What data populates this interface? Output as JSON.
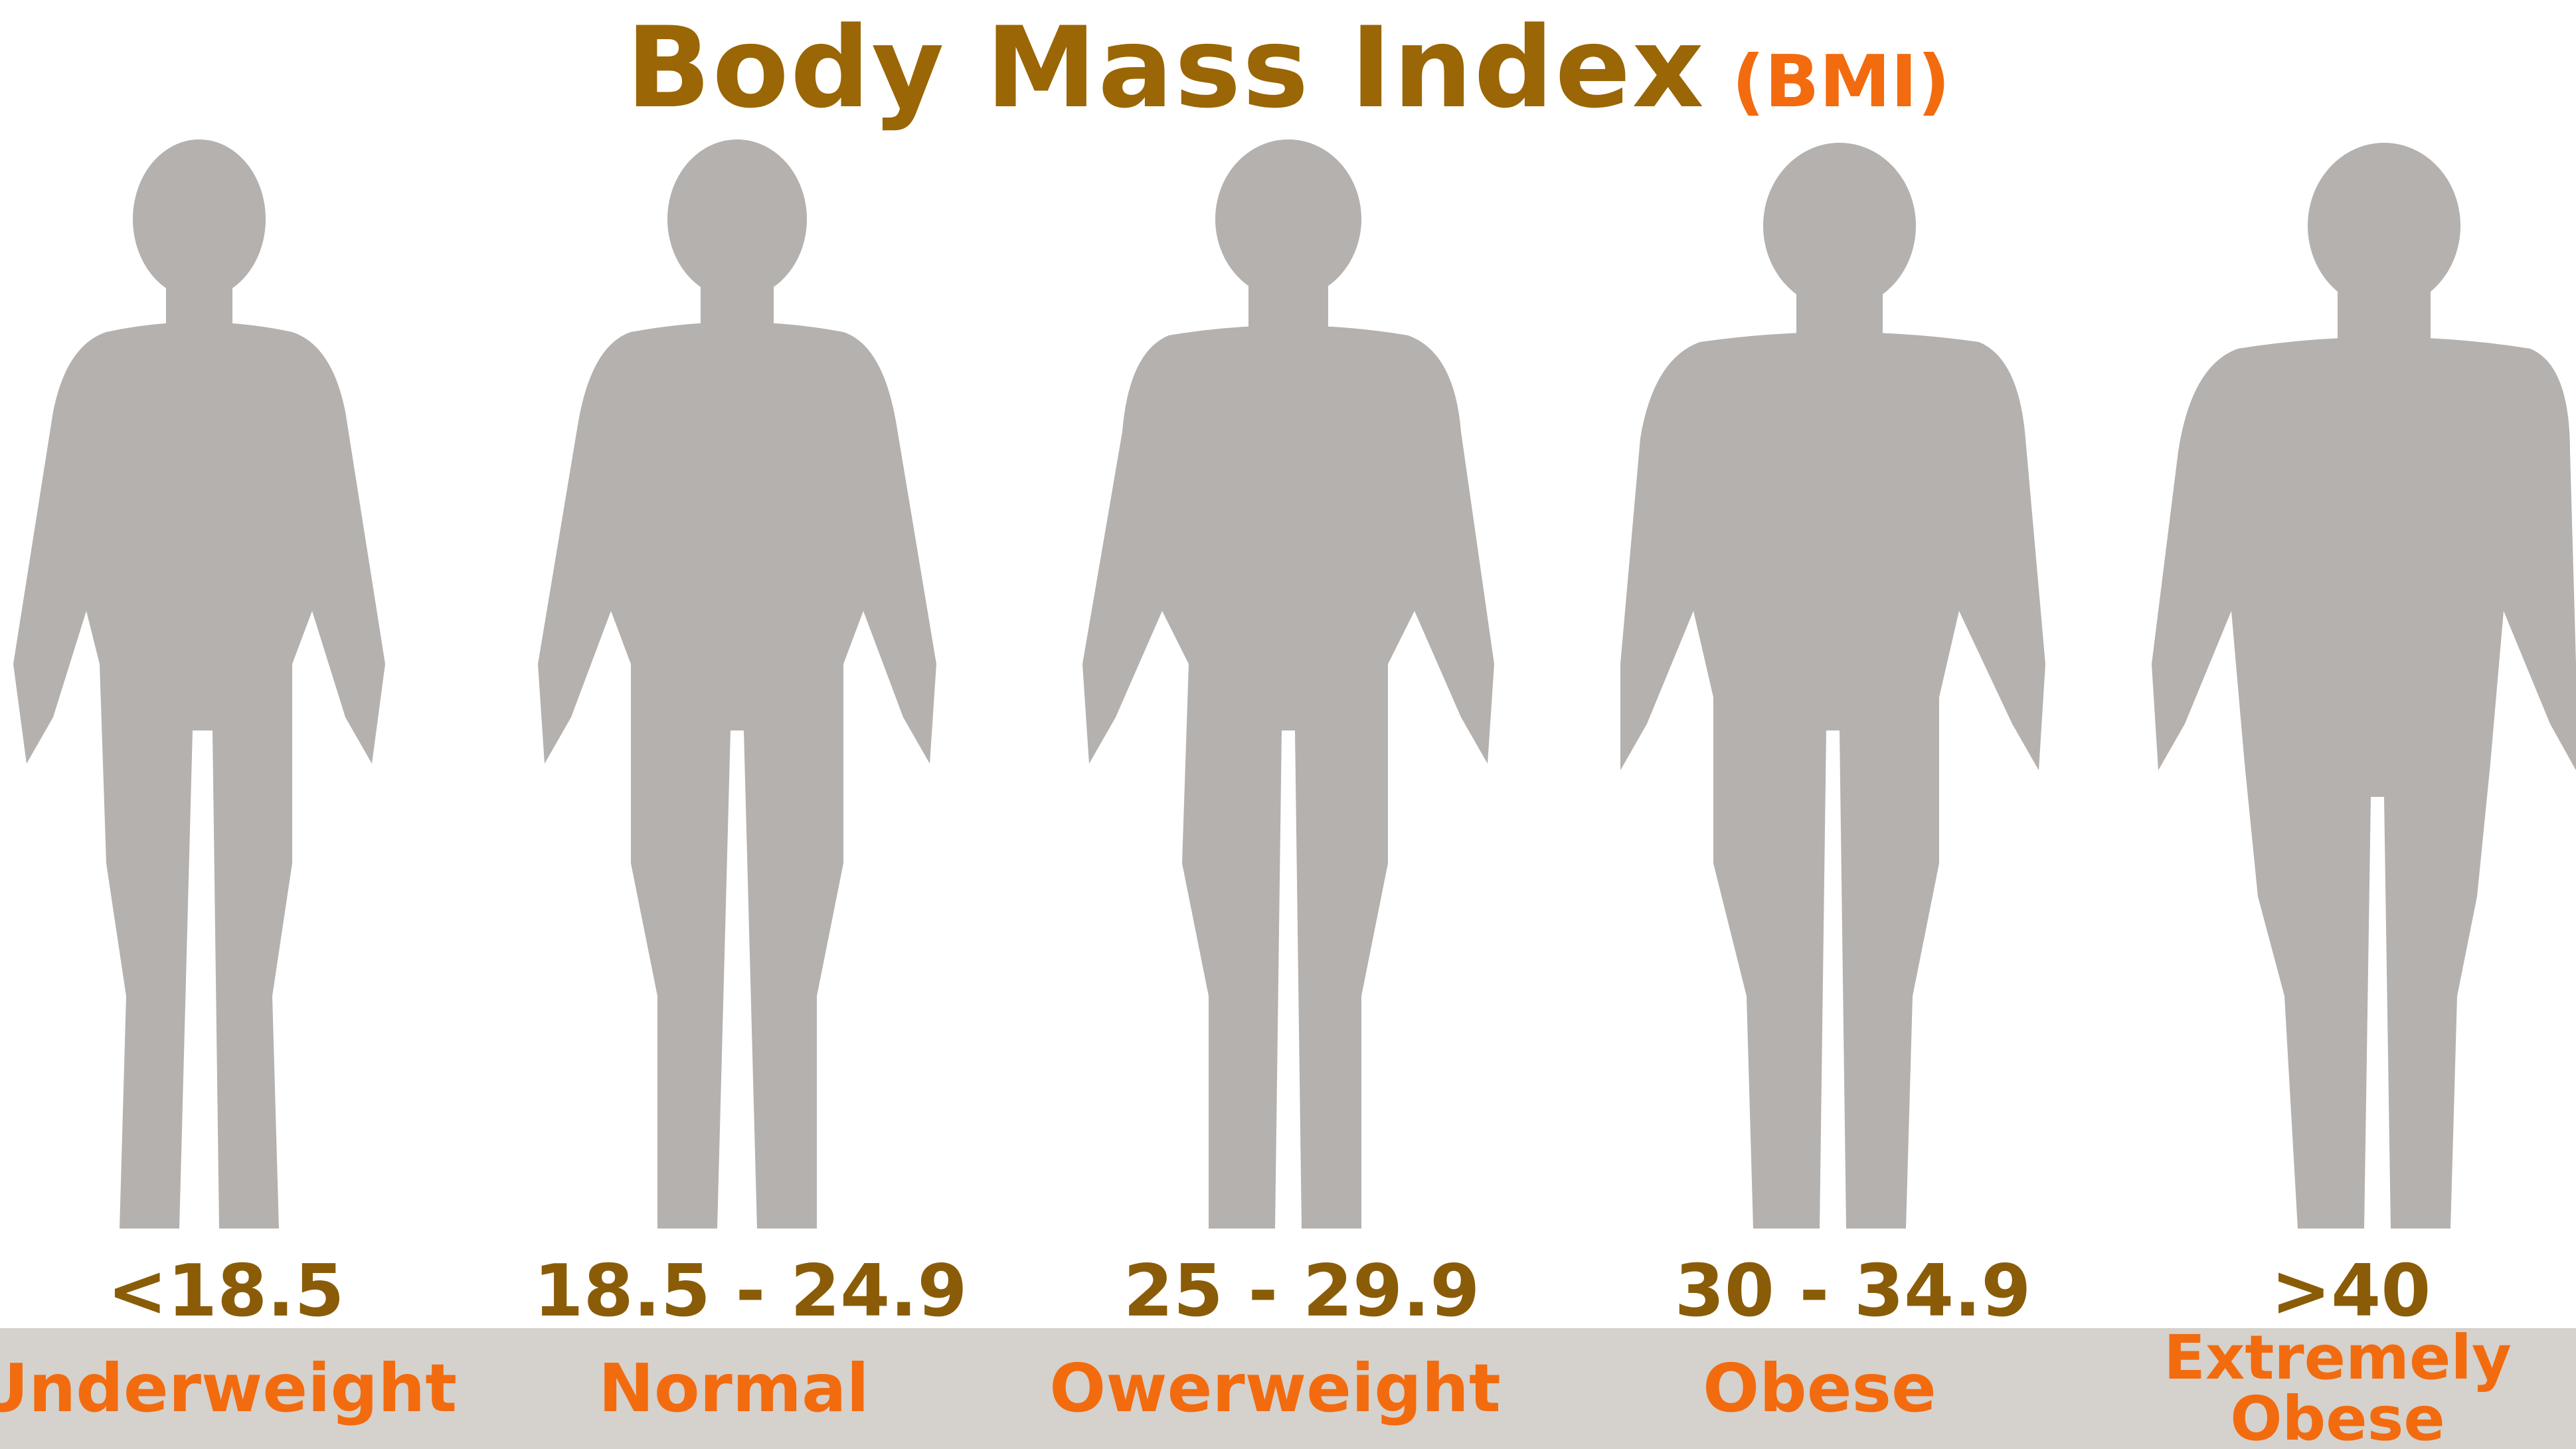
{
  "title": {
    "main": "Body Mass Index",
    "sub": "(BMI)"
  },
  "categories": [
    {
      "range": "<18.5",
      "label": "Underweight"
    },
    {
      "range": "18.5 - 24.9",
      "label": "Normal"
    },
    {
      "range": "25 - 29.9",
      "label": "Owerweight"
    },
    {
      "range": "30 - 34.9",
      "label": "Obese"
    },
    {
      "range": ">40",
      "label_line1": "Extremely",
      "label_line2": "Obese"
    }
  ],
  "colors": {
    "title": "#9a6606",
    "accent": "#f26b0f",
    "range_text": "#8a5c08",
    "figure": "#b4b1ae",
    "band": "#d5d1cc"
  }
}
